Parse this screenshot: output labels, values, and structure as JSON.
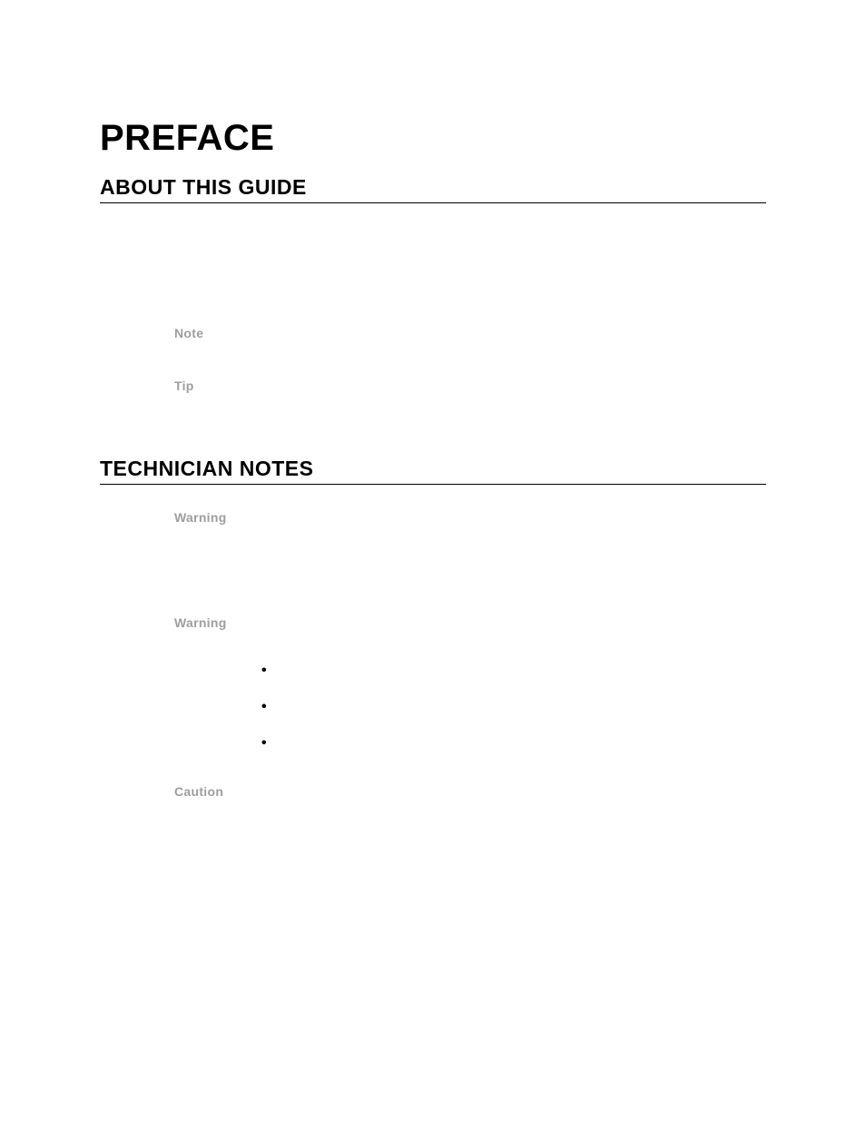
{
  "title": "PREFACE",
  "sections": {
    "about": {
      "heading": "ABOUT THIS GUIDE",
      "labels": {
        "note": "Note",
        "tip": "Tip"
      }
    },
    "technician": {
      "heading": "TECHNICIAN NOTES",
      "labels": {
        "warning1": "Warning",
        "warning2": "Warning",
        "caution": "Caution"
      },
      "bullets": [
        "•",
        "•",
        "•"
      ]
    }
  },
  "colors": {
    "background": "#ffffff",
    "title_text": "#000000",
    "label_text": "#9e9e9e",
    "rule": "#000000"
  },
  "typography": {
    "title_fontsize": 40,
    "heading_fontsize": 23,
    "label_fontsize": 14,
    "font_family": "Arial Black"
  }
}
